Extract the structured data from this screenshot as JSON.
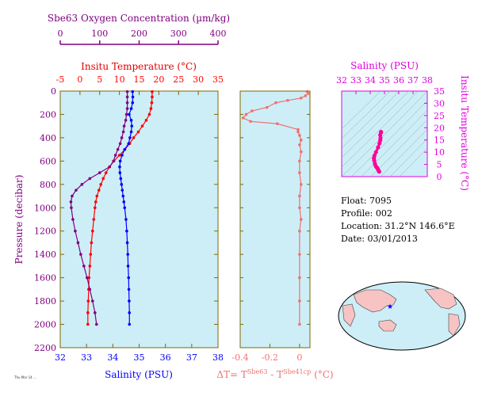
{
  "colors": {
    "panel_bg": "#cdeef7",
    "frame": "#7b6a00",
    "temperature": "#ff0000",
    "salinity": "#0000ff",
    "oxygen": "#800080",
    "delta": "#f07070",
    "ts_axis": "#e000e0",
    "ts_trace": "#ff0099",
    "pressure_label": "#800080",
    "land": "#f7c3c3",
    "ocean": "#cdeef7"
  },
  "info": {
    "float": "Float:  7095",
    "profile": "Profile:  002",
    "location": "Location:  31.2°N  146.6°E",
    "date": "Date:  03/01/2013"
  },
  "footer_stamp": "Thu Mar 14 ...",
  "chart_data": [
    {
      "id": "profiles",
      "type": "line",
      "yaxis": {
        "label": "Pressure (decibar)",
        "ticks": [
          0,
          200,
          400,
          600,
          800,
          1000,
          1200,
          1400,
          1600,
          1800,
          2000,
          2200
        ],
        "ylim": [
          2200,
          0
        ]
      },
      "axes": {
        "salinity": {
          "label": "Salinity (PSU)",
          "ticks": [
            32,
            33,
            34,
            35,
            36,
            37,
            38
          ],
          "lim": [
            32,
            38
          ]
        },
        "temperature": {
          "label": "Insitu Temperature (°C)",
          "ticks": [
            -5,
            0,
            5,
            10,
            15,
            20,
            25,
            30,
            35
          ],
          "lim": [
            -5,
            35
          ]
        },
        "oxygen": {
          "label": "Sbe63 Oxygen Concentration (µm/kg)",
          "ticks": [
            0,
            100,
            200,
            300,
            400
          ],
          "lim": [
            0,
            400
          ]
        }
      },
      "series": [
        {
          "name": "Insitu Temperature (°C)",
          "axis": "temperature",
          "pressure": [
            5,
            50,
            100,
            150,
            200,
            250,
            300,
            350,
            400,
            450,
            500,
            550,
            600,
            650,
            700,
            750,
            800,
            850,
            900,
            950,
            1000,
            1100,
            1200,
            1300,
            1400,
            1500,
            1600,
            1700,
            1800,
            1900,
            2000
          ],
          "values": [
            18.3,
            18.3,
            18.2,
            18.0,
            17.6,
            16.8,
            15.8,
            14.8,
            13.6,
            12.6,
            11.4,
            10.0,
            8.6,
            7.5,
            6.6,
            5.9,
            5.3,
            4.8,
            4.3,
            4.0,
            3.8,
            3.5,
            3.2,
            2.9,
            2.7,
            2.5,
            2.3,
            2.2,
            2.1,
            2.0,
            2.0
          ]
        },
        {
          "name": "Salinity (PSU)",
          "axis": "salinity",
          "pressure": [
            5,
            50,
            100,
            150,
            200,
            250,
            300,
            350,
            400,
            450,
            500,
            550,
            600,
            650,
            700,
            750,
            800,
            850,
            900,
            950,
            1000,
            1100,
            1200,
            1300,
            1400,
            1500,
            1600,
            1700,
            1800,
            1900,
            2000
          ],
          "values": [
            34.75,
            34.76,
            34.75,
            34.7,
            34.62,
            34.7,
            34.72,
            34.7,
            34.65,
            34.6,
            34.45,
            34.35,
            34.28,
            34.26,
            34.27,
            34.3,
            34.33,
            34.36,
            34.39,
            34.42,
            34.45,
            34.5,
            34.53,
            34.55,
            34.57,
            34.58,
            34.6,
            34.61,
            34.62,
            34.63,
            34.63
          ]
        },
        {
          "name": "Sbe63 Oxygen Concentration (µm/kg)",
          "axis": "oxygen",
          "pressure": [
            5,
            50,
            100,
            150,
            200,
            250,
            300,
            350,
            400,
            450,
            500,
            550,
            600,
            650,
            700,
            750,
            800,
            850,
            900,
            950,
            1000,
            1100,
            1200,
            1300,
            1400,
            1500,
            1600,
            1700,
            1800,
            1900,
            2000
          ],
          "values": [
            170,
            170,
            170,
            170,
            168,
            166,
            162,
            160,
            156,
            152,
            146,
            140,
            135,
            125,
            100,
            75,
            55,
            40,
            30,
            27,
            28,
            32,
            38,
            45,
            52,
            60,
            68,
            75,
            82,
            88,
            92
          ]
        }
      ]
    },
    {
      "id": "delta_t",
      "type": "line",
      "xlabel": "ΔT= T^Sbe63 - T^Sbe41cp (°C)",
      "xticks": [
        -0.4,
        -0.2,
        0.0
      ],
      "xlim": [
        -0.4,
        0.07
      ],
      "ylim": [
        2200,
        0
      ],
      "series": [
        {
          "name": "ΔT",
          "pressure": [
            5,
            20,
            40,
            60,
            80,
            100,
            140,
            170,
            200,
            230,
            260,
            280,
            330,
            350,
            380,
            420,
            460,
            520,
            600,
            700,
            800,
            900,
            1000,
            1100,
            1200,
            1400,
            1600,
            1800,
            2000
          ],
          "values": [
            0.05,
            0.06,
            0.04,
            0.01,
            -0.08,
            -0.16,
            -0.22,
            -0.32,
            -0.36,
            -0.38,
            -0.33,
            -0.15,
            -0.01,
            -0.01,
            0.0,
            0.01,
            0.0,
            0.01,
            0.0,
            0.0,
            0.01,
            0.0,
            0.0,
            0.01,
            0.0,
            0.0,
            0.0,
            0.0,
            0.0
          ]
        }
      ]
    },
    {
      "id": "ts",
      "type": "scatter",
      "xlabel": "Salinity (PSU)",
      "ylabel": "Insitu Temperature (°C)",
      "xticks": [
        32,
        33,
        34,
        35,
        36,
        37,
        38
      ],
      "yticks": [
        0,
        5,
        10,
        15,
        20,
        25,
        30,
        35
      ],
      "xlim": [
        32,
        38
      ],
      "ylim": [
        0,
        35
      ],
      "series": [
        {
          "name": "T-S",
          "salinity": [
            34.63,
            34.6,
            34.55,
            34.5,
            34.45,
            34.39,
            34.33,
            34.28,
            34.26,
            34.3,
            34.4,
            34.55,
            34.65,
            34.7,
            34.72,
            34.7,
            34.75,
            34.76
          ],
          "temperature": [
            2.0,
            2.3,
            2.9,
            3.5,
            3.8,
            4.3,
            5.3,
            6.6,
            7.5,
            8.6,
            10.0,
            12.0,
            13.6,
            14.8,
            15.8,
            17.0,
            18.0,
            18.3
          ]
        }
      ]
    }
  ]
}
